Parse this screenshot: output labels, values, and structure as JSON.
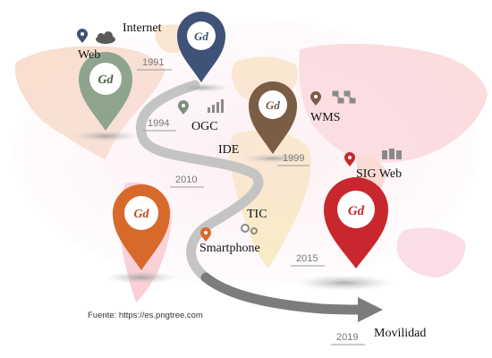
{
  "title": "",
  "source": "Fuente: https://es.pngtree.com",
  "pin_logo": "Gd",
  "colors": {
    "navy": "#3f5277",
    "sage": "#8ea48d",
    "brown": "#7a5d44",
    "orange": "#d76a2b",
    "red": "#c8282d",
    "road": "#bdbdbd",
    "arrow": "#7c7c7c"
  },
  "pins": [
    {
      "name": "navy-pin",
      "color": "navy"
    },
    {
      "name": "sage-pin",
      "color": "sage"
    },
    {
      "name": "brown-pin",
      "color": "brown"
    },
    {
      "name": "orange-pin",
      "color": "orange"
    },
    {
      "name": "red-pin",
      "color": "red"
    }
  ],
  "milestones": [
    {
      "label": "Internet"
    },
    {
      "label": "Web"
    },
    {
      "label": "OGC"
    },
    {
      "label": "IDE"
    },
    {
      "label": "WMS"
    },
    {
      "label": "SIG Web"
    },
    {
      "label": "TIC"
    },
    {
      "label": "Smartphone"
    },
    {
      "label": "Movilidad"
    }
  ],
  "years": [
    "1991",
    "1994",
    "1999",
    "2010",
    "2015",
    "2019"
  ],
  "icons": [
    "location-pin-icon",
    "cloud-icon",
    "bar-chart-icon",
    "network-icon",
    "gears-icon",
    "server-icon"
  ]
}
